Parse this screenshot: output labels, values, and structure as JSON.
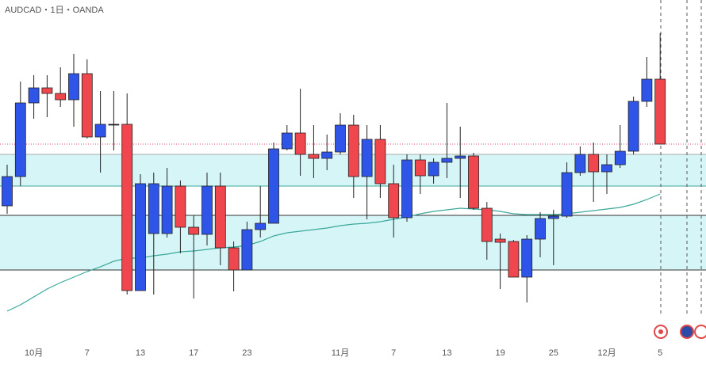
{
  "chart_data": {
    "type": "candlestick",
    "title": "AUDCAD・1日・OANDA",
    "categories": [
      null,
      null,
      "10月",
      null,
      null,
      null,
      "7",
      null,
      null,
      null,
      "13",
      null,
      null,
      null,
      "17",
      null,
      null,
      null,
      "23",
      null,
      null,
      null,
      null,
      null,
      null,
      "11月",
      null,
      null,
      null,
      "7",
      null,
      null,
      null,
      "13",
      null,
      null,
      null,
      "19",
      null,
      null,
      null,
      "25",
      null,
      null,
      null,
      "12月",
      null,
      null,
      null,
      "5"
    ],
    "open": [
      201,
      238,
      331,
      350,
      343,
      335,
      368,
      288,
      304,
      304,
      94,
      166,
      166,
      226,
      174,
      165,
      226,
      148,
      120,
      171,
      179,
      273,
      293,
      266,
      261,
      269,
      303,
      238,
      285,
      229,
      186,
      259,
      239,
      256,
      261,
      264,
      198,
      159,
      156,
      111,
      159,
      185,
      188,
      243,
      266,
      244,
      253,
      270,
      333,
      361
    ],
    "high": [
      253,
      358,
      366,
      366,
      376,
      393,
      386,
      346,
      346,
      343,
      241,
      243,
      249,
      233,
      189,
      243,
      243,
      156,
      181,
      226,
      281,
      303,
      349,
      303,
      291,
      318,
      316,
      303,
      303,
      253,
      266,
      266,
      261,
      331,
      301,
      268,
      206,
      166,
      158,
      164,
      193,
      196,
      256,
      276,
      281,
      266,
      303,
      339,
      389,
      419
    ],
    "low": [
      191,
      226,
      311,
      313,
      326,
      301,
      286,
      243,
      271,
      89,
      94,
      89,
      161,
      141,
      84,
      151,
      126,
      93,
      120,
      161,
      179,
      271,
      239,
      236,
      246,
      266,
      211,
      184,
      211,
      161,
      181,
      216,
      229,
      236,
      211,
      196,
      133,
      96,
      111,
      79,
      136,
      126,
      186,
      239,
      206,
      216,
      249,
      266,
      326,
      279
    ],
    "close": [
      238,
      331,
      350,
      343,
      335,
      368,
      288,
      304,
      304,
      94,
      229,
      229,
      226,
      174,
      165,
      226,
      148,
      120,
      171,
      179,
      273,
      293,
      266,
      261,
      269,
      303,
      238,
      285,
      229,
      186,
      259,
      239,
      256,
      261,
      264,
      198,
      156,
      155,
      111,
      159,
      185,
      188,
      243,
      266,
      244,
      253,
      270,
      333,
      361,
      279
    ],
    "up_color": "#2f55e8",
    "down_color": "#f0474f",
    "ma": {
      "color": "#3aa89b",
      "values": [
        68,
        76,
        86,
        96,
        104,
        111,
        118,
        124,
        131,
        135,
        135,
        138,
        140,
        143,
        144,
        146,
        148,
        149,
        151,
        156,
        163,
        167,
        169,
        171,
        173,
        176,
        178,
        179,
        181,
        184,
        187,
        191,
        194,
        196,
        198,
        197,
        196,
        194,
        191,
        190,
        190,
        190,
        191,
        193,
        195,
        197,
        199,
        203,
        209,
        216
      ]
    },
    "zones": [
      {
        "from": 226,
        "to": 266
      },
      {
        "from": 120,
        "to": 189
      }
    ],
    "zone_color": "#d6f5f7",
    "price_line_color": "#e0506a",
    "ylim": [
      0,
      461
    ]
  }
}
